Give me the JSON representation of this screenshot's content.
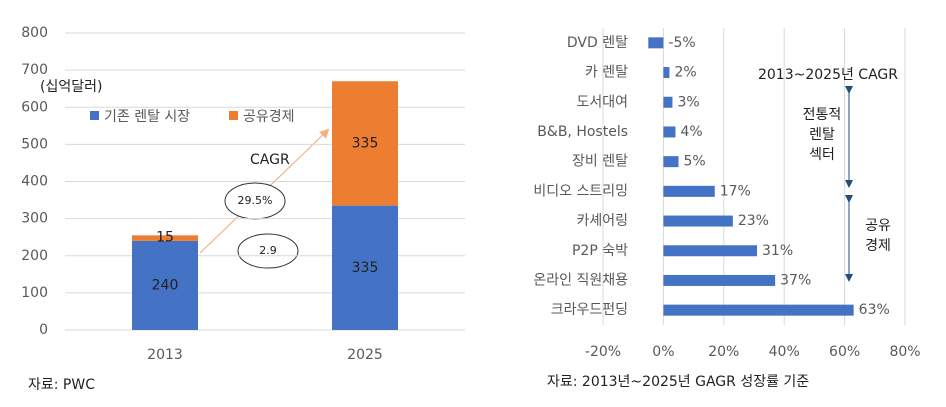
{
  "chart_data": [
    {
      "type": "bar",
      "stacked": true,
      "unit_label": "(십억달러)",
      "categories": [
        "2013",
        "2025"
      ],
      "series": [
        {
          "name": "기존 렌탈 시장",
          "color": "#4472c4",
          "values": [
            240,
            335
          ]
        },
        {
          "name": "공유경제",
          "color": "#ed7d31",
          "values": [
            15,
            335
          ]
        }
      ],
      "ylim": [
        0,
        800
      ],
      "yticks": [
        0,
        100,
        200,
        300,
        400,
        500,
        600,
        700,
        800
      ],
      "grid": true,
      "annotations": {
        "cagr": "CAGR",
        "growth_rates": [
          "29.5%",
          "2.9"
        ]
      },
      "source": "자료: PWC"
    },
    {
      "type": "barh",
      "categories": [
        "DVD 렌탈",
        "카 렌탈",
        "도서대여",
        "B&B, Hostels",
        "장비 렌탈",
        "비디오 스트리밍",
        "카셰어링",
        "P2P 숙박",
        "온라인 직원채용",
        "크라우드펀딩"
      ],
      "values": [
        -5,
        2,
        3,
        4,
        5,
        17,
        23,
        31,
        37,
        63
      ],
      "value_labels": [
        "-5%",
        "2%",
        "3%",
        "4%",
        "5%",
        "17%",
        "23%",
        "31%",
        "37%",
        "63%"
      ],
      "color": "#4472c4",
      "xlim": [
        -20,
        80
      ],
      "xticks": [
        {
          "value": -20,
          "label": "-20%"
        },
        {
          "value": 0,
          "label": "0%"
        },
        {
          "value": 20,
          "label": "20%"
        },
        {
          "value": 40,
          "label": "40%"
        },
        {
          "value": 60,
          "label": "60%"
        },
        {
          "value": 80,
          "label": "80%"
        }
      ],
      "grid": true,
      "annotations": {
        "title": "2013~2025년 CAGR",
        "traditional": [
          "전통적",
          "렌탈",
          "섹터"
        ],
        "sharing": [
          "공유",
          "경제"
        ]
      },
      "source": "자료: 2013년~2025년 GAGR 성장률 기준"
    }
  ]
}
